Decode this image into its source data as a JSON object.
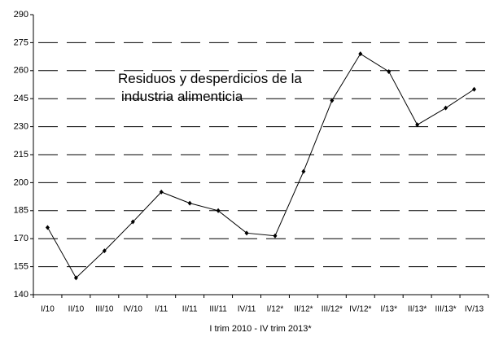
{
  "chart_data": {
    "type": "line",
    "annotation": [
      "Residuos y desperdicios de la",
      "industria alimenticia"
    ],
    "x_label": "I trim 2010 - IV trim 2013*",
    "categories": [
      "I/10",
      "II/10",
      "III/10",
      "IV/10",
      "I/11",
      "II/11",
      "III/11",
      "IV/11",
      "I/12*",
      "II/12*",
      "III/12*",
      "IV/12*",
      "I/13*",
      "II/13*",
      "III/13*",
      "IV/13"
    ],
    "values": [
      176,
      149,
      163.5,
      179,
      195,
      189,
      185,
      173,
      171.5,
      206,
      244,
      269,
      259.5,
      231,
      240,
      250
    ],
    "color": "#000000",
    "ylim": [
      140,
      290
    ],
    "yticks": [
      140,
      155,
      170,
      185,
      200,
      215,
      230,
      245,
      260,
      275,
      290
    ],
    "grid": true
  }
}
